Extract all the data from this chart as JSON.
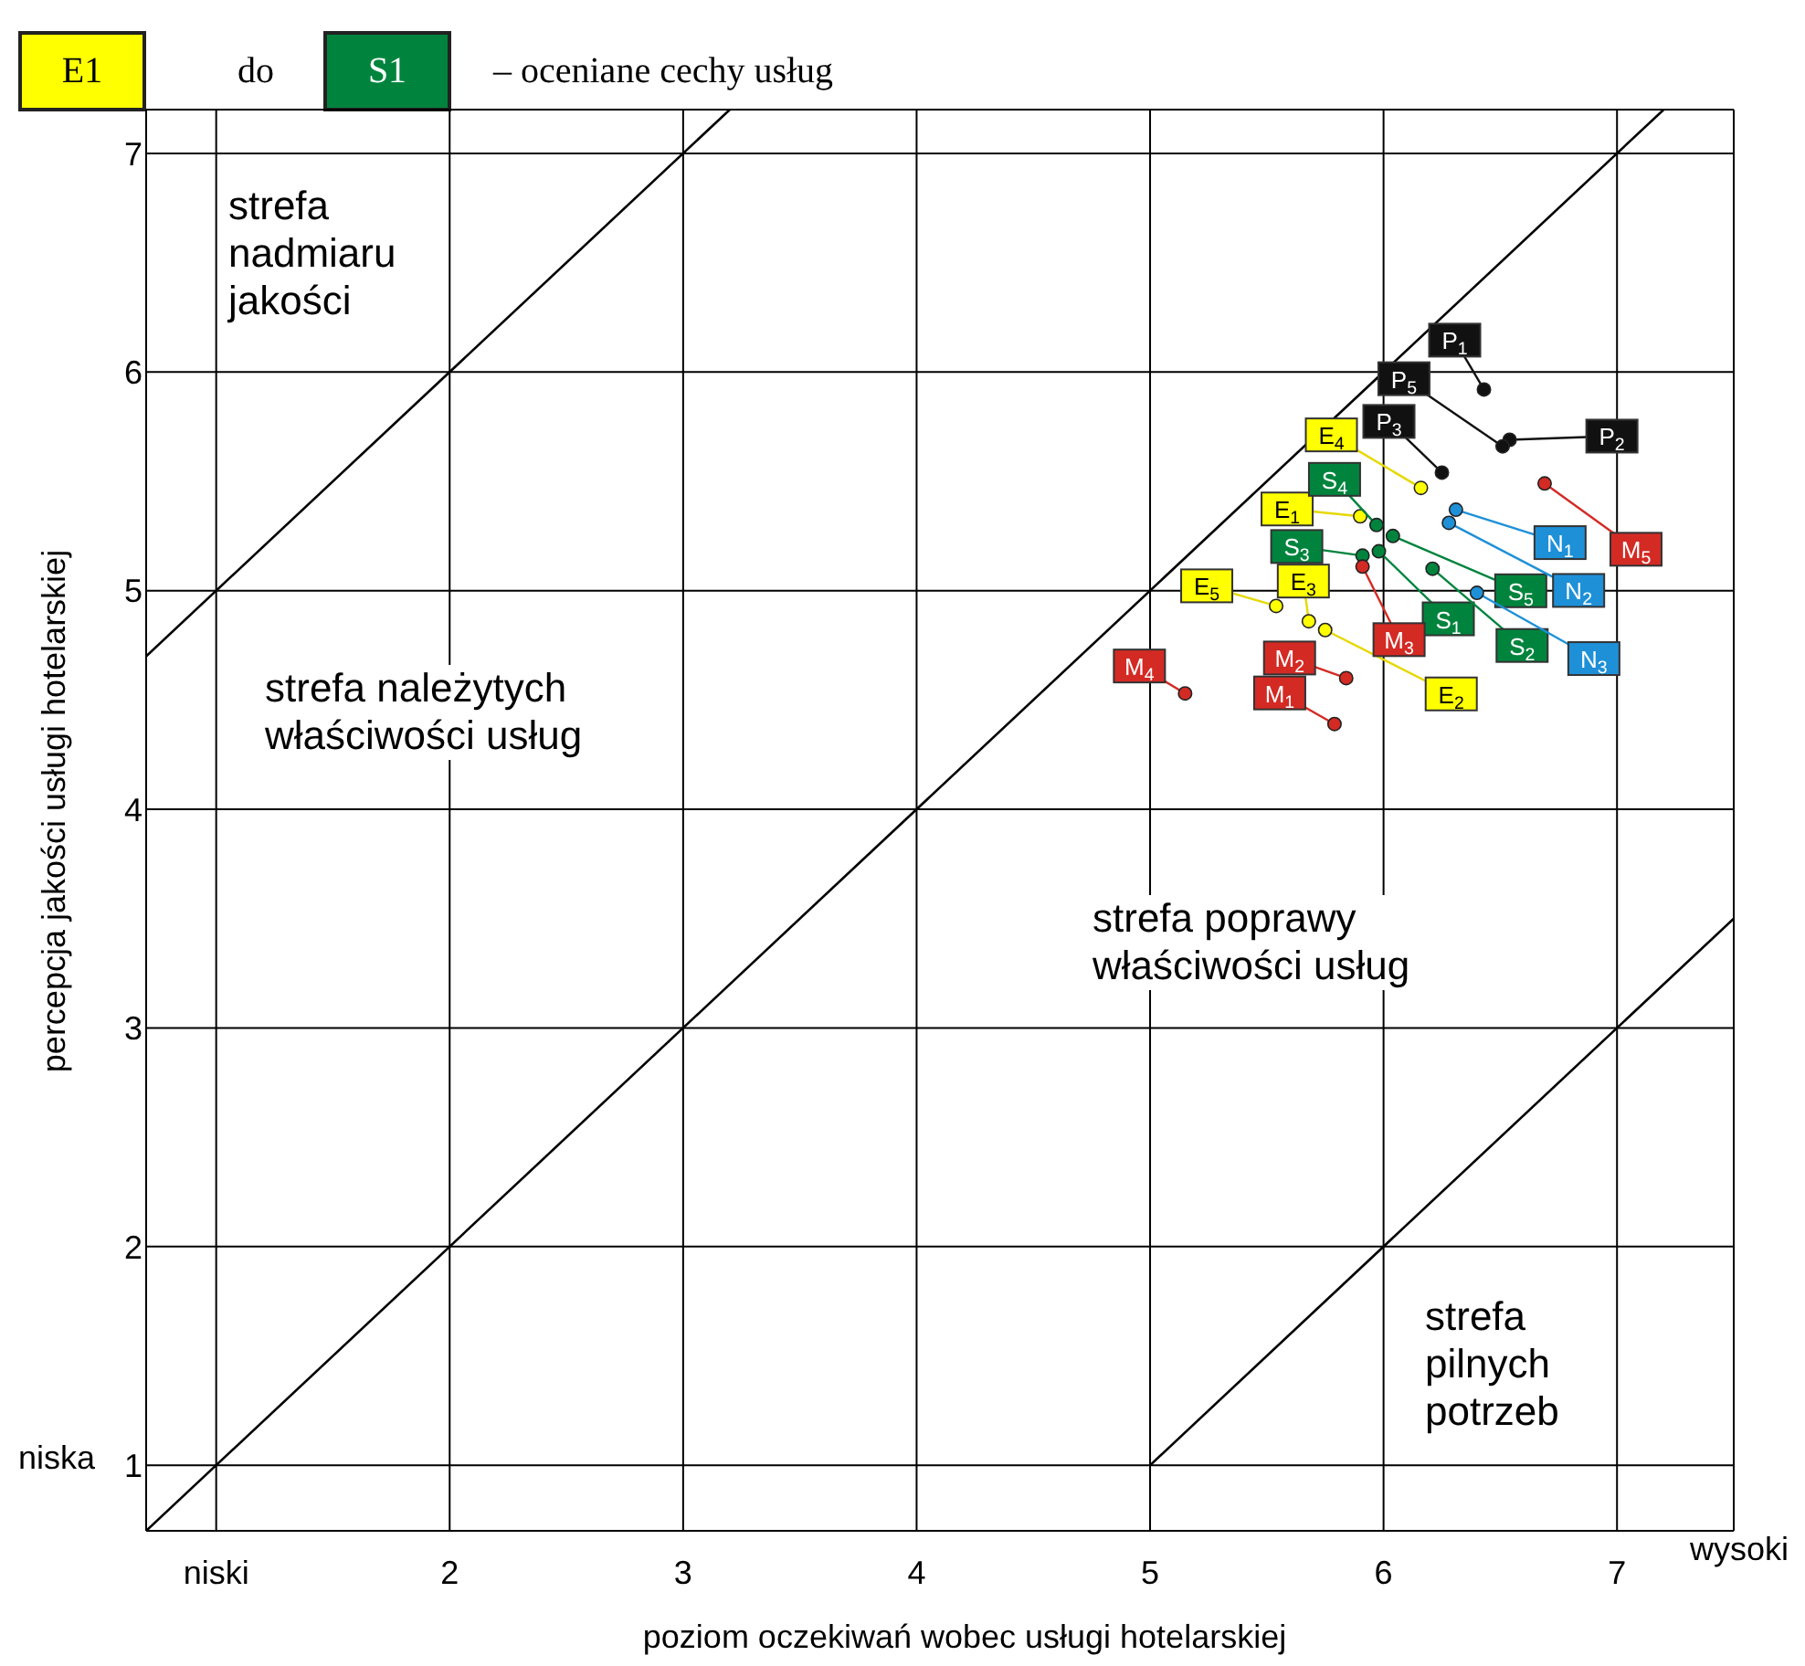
{
  "chart_data": {
    "type": "scatter",
    "xlabel": "poziom oczekiwań wobec usługi hotelarskiej",
    "ylabel": "percepcja jakości usługi hotelarskiej",
    "xlim": [
      0.7,
      7.5
    ],
    "ylim": [
      0.7,
      7.2
    ],
    "xticks": [
      {
        "value": 1,
        "label": "niski"
      },
      2,
      3,
      4,
      5,
      6,
      7
    ],
    "yticks": [
      1,
      2,
      3,
      4,
      5,
      6,
      7
    ],
    "grid": true,
    "marker": "circle",
    "annotations": [
      "E1",
      "do",
      "S1",
      "– oceniane cechy usług",
      "strefa\nnadmiaru\njakości",
      "strefa należytych\nwłaściwości usług",
      "strefa poprawy\nwłaściwości usług",
      "strefa\npilnych\npotrzeb",
      "niska",
      "wysoki",
      {
        "text": "E$_{1}$",
        "x": 5.9,
        "y": 5.34
      },
      {
        "text": "E$_{2}$",
        "x": 5.75,
        "y": 4.82
      },
      {
        "text": "E$_{3}$",
        "x": 5.68,
        "y": 4.86
      },
      {
        "text": "E$_{4}$",
        "x": 6.16,
        "y": 5.47
      },
      {
        "text": "E$_{5}$",
        "x": 5.54,
        "y": 4.93
      },
      {
        "text": "S$_{1}$",
        "x": 5.98,
        "y": 5.18
      },
      {
        "text": "S$_{2}$",
        "x": 6.21,
        "y": 5.1
      },
      {
        "text": "S$_{3}$",
        "x": 5.91,
        "y": 5.16
      },
      {
        "text": "S$_{4}$",
        "x": 5.97,
        "y": 5.3
      },
      {
        "text": "S$_{5}$",
        "x": 6.04,
        "y": 5.25
      },
      {
        "text": "M$_{1}$",
        "x": 5.79,
        "y": 4.39
      },
      {
        "text": "M$_{2}$",
        "x": 5.84,
        "y": 4.6
      },
      {
        "text": "M$_{3}$",
        "x": 5.91,
        "y": 5.11
      },
      {
        "text": "M$_{4}$",
        "x": 5.15,
        "y": 4.53
      },
      {
        "text": "M$_{5}$",
        "x": 6.69,
        "y": 5.49
      },
      {
        "text": "P$_{1}$",
        "x": 6.43,
        "y": 5.92
      },
      {
        "text": "P$_{2}$",
        "x": 6.54,
        "y": 5.69
      },
      {
        "text": "P$_{3}$",
        "x": 6.25,
        "y": 5.54
      },
      {
        "text": "P$_{5}$",
        "x": 6.51,
        "y": 5.66
      },
      {
        "text": "N$_{1}$",
        "x": 6.31,
        "y": 5.37
      },
      {
        "text": "N$_{2}$",
        "x": 6.28,
        "y": 5.31
      },
      {
        "text": "N$_{3}$",
        "x": 6.4,
        "y": 4.99
      }
    ],
    "series": [
      {
        "type": "line",
        "marker": "none",
        "color": "#000000",
        "x": [
          0.7,
          3.2
        ],
        "values": [
          4.7,
          7.2
        ]
      },
      {
        "type": "line",
        "marker": "none",
        "color": "#000000",
        "x": [
          0.7,
          7.2
        ],
        "values": [
          0.7,
          7.2
        ]
      },
      {
        "type": "line",
        "marker": "none",
        "color": "#000000",
        "x": [
          5,
          7.5
        ],
        "values": [
          1,
          3.5
        ]
      },
      {
        "color": "#ffff00",
        "x": [
          5.9,
          5.75,
          5.68,
          6.16,
          5.54
        ],
        "values": [
          5.34,
          4.82,
          4.86,
          5.47,
          4.93
        ]
      },
      {
        "color": "#00843d",
        "x": [
          5.98,
          6.21,
          5.91,
          5.97,
          6.04
        ],
        "values": [
          5.18,
          5.1,
          5.16,
          5.3,
          5.25
        ]
      },
      {
        "color": "#d42a24",
        "x": [
          5.79,
          5.84,
          5.91,
          5.15,
          6.69
        ],
        "values": [
          4.39,
          4.6,
          5.11,
          4.53,
          5.49
        ]
      },
      {
        "color": "#111111",
        "x": [
          6.43,
          6.54,
          6.25,
          6.51
        ],
        "values": [
          5.92,
          5.69,
          5.54,
          5.66
        ]
      },
      {
        "color": "#1e90d8",
        "x": [
          6.31,
          6.28,
          6.4
        ],
        "values": [
          5.37,
          5.31,
          4.99
        ]
      }
    ]
  }
}
